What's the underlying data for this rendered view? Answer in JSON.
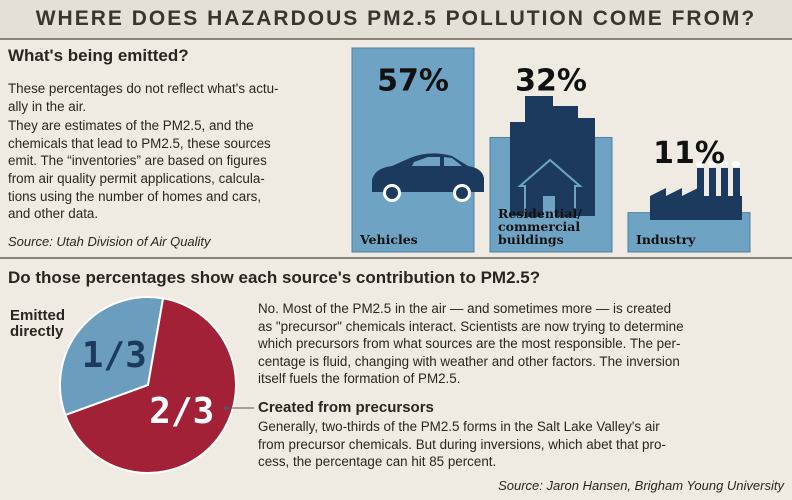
{
  "title": "WHERE DOES HAZARDOUS PM2.5 POLLUTION COME FROM?",
  "emitted": {
    "heading": "What's being emitted?",
    "paragraphs": [
      [
        "These percentages do not reflect what's actu-",
        "ally in the air."
      ],
      [
        "They are estimates of the PM2.5, and the",
        "chemicals that lead to PM2.5, these sources",
        "emit. The “inventories” are based on figures",
        "from air quality permit applications, calcula-",
        "tions using the number of homes  and cars,",
        "and other data."
      ]
    ],
    "source": "Source: Utah Division of Air Quality"
  },
  "contribution": {
    "heading": "Do those percentages show each source's contribution to PM2.5?",
    "paragraph": [
      "No. Most of the PM2.5 in the air — and sometimes more — is created",
      "as \"precursor\" chemicals interact. Scientists are now trying to determine",
      "which precursors from what sources are the most responsible. The per-",
      "centage is fluid, changing with weather and other factors. The inversion",
      "itself fuels the formation of PM2.5."
    ],
    "precursor_text": [
      "Generally, two-thirds of the PM2.5 forms in the Salt Lake Valley's  air",
      "from precursor chemicals. But during inversions, which abet that pro-",
      "cess, the percentage can hit 85 percent."
    ],
    "source": "Source: Jaron Hansen, Brigham Young University"
  },
  "chart_data": [
    {
      "type": "bar",
      "categories": [
        "Vehicles",
        "Residential/ commercial buildings",
        "Industry"
      ],
      "values": [
        57,
        32,
        11
      ],
      "value_labels": [
        "57%",
        "32%",
        "11%"
      ],
      "color": "#6fa3c4"
    },
    {
      "type": "pie",
      "categories": [
        "Emitted directly",
        "Created from precursors"
      ],
      "values": [
        33.3,
        66.7
      ],
      "value_labels": [
        "1/3",
        "2/3"
      ],
      "colors": [
        "#6b9dbf",
        "#a32136"
      ]
    }
  ]
}
